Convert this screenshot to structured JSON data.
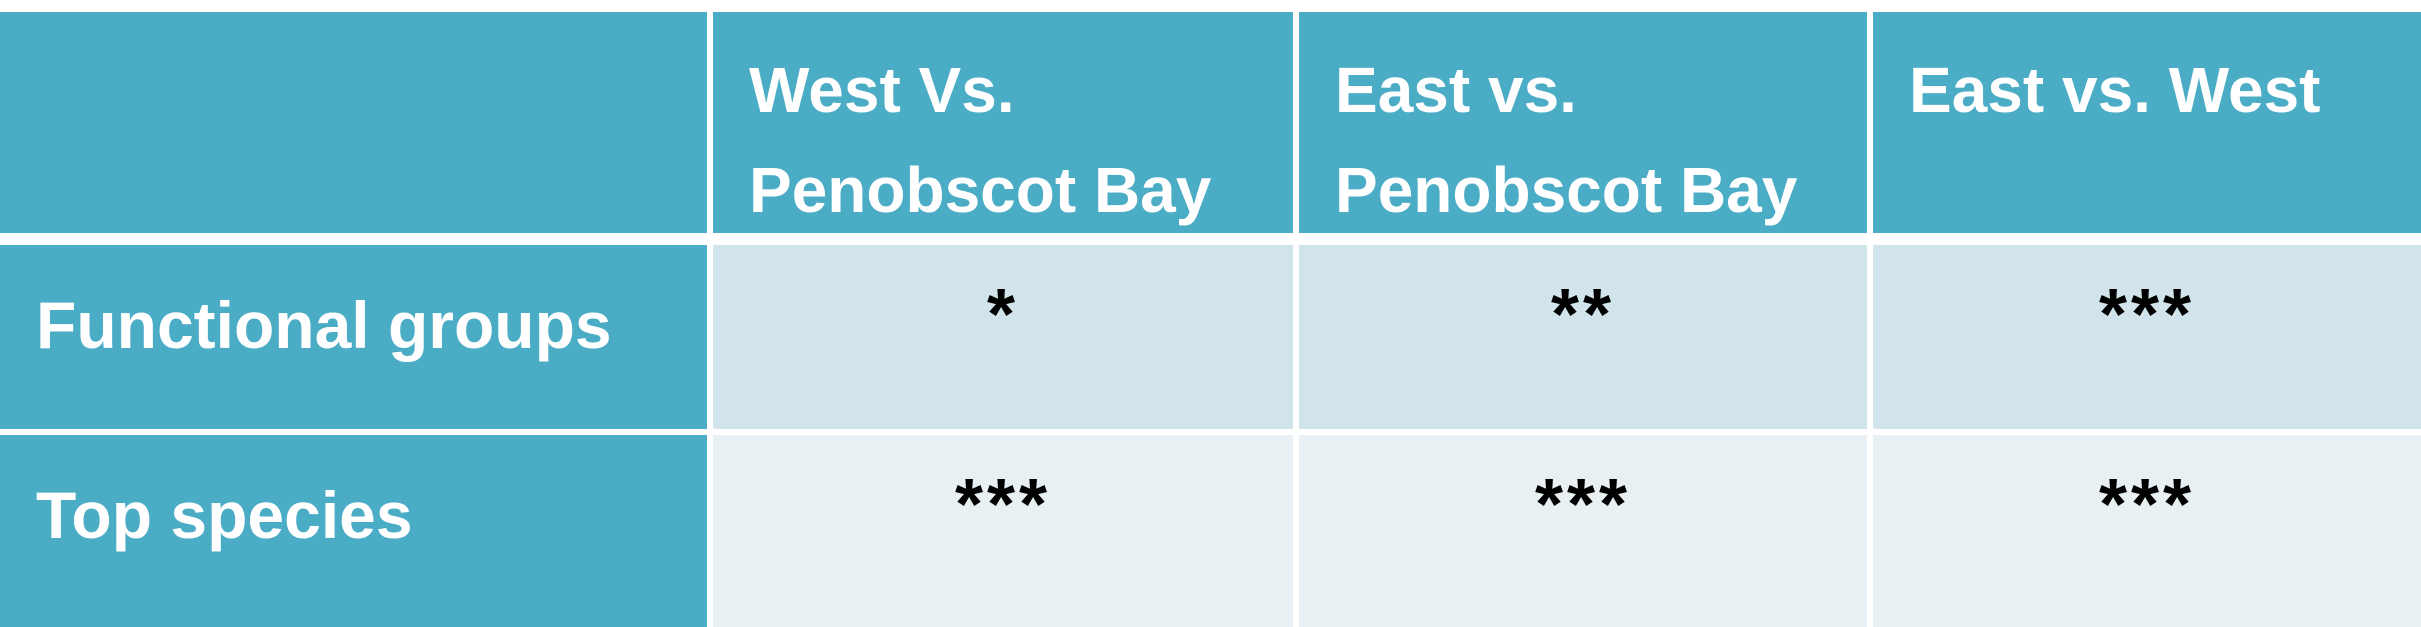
{
  "table": {
    "columns": [
      "",
      "West Vs.\nPenobscot Bay",
      "East vs.\nPenobscot Bay",
      "East vs. West"
    ],
    "rows": [
      {
        "label": "Functional groups",
        "values": [
          "*",
          "**",
          "***"
        ]
      },
      {
        "label": "Top species",
        "values": [
          "***",
          "***",
          "***"
        ]
      }
    ]
  },
  "colors": {
    "header_bg": "#4bacc6",
    "row1_bg": "#d1e4eb",
    "row2_bg": "#e8f0f4",
    "header_text": "#ffffff"
  }
}
